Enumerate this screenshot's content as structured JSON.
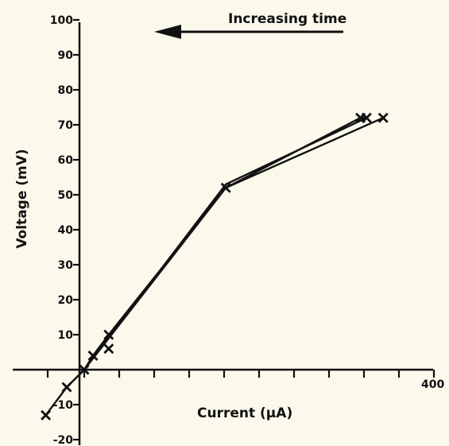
{
  "chart_data": {
    "type": "line",
    "title": "",
    "xlabel": "Current (µA)",
    "ylabel": "Voltage (mV)",
    "xlim": [
      -40,
      400
    ],
    "ylim": [
      -20,
      100
    ],
    "y_ticks": [
      "100",
      "90",
      "80",
      "70",
      "60",
      "50",
      "40",
      "30",
      "20",
      "10",
      "-10",
      "-20"
    ],
    "x_tick_values": [
      0,
      40,
      80,
      120,
      160,
      200,
      240,
      280,
      320,
      360,
      400
    ],
    "x_tick_labels_shown": [
      "400"
    ],
    "annotation": "Increasing time",
    "marker": "x",
    "series": [
      {
        "points": [
          [
            -44,
            -13
          ],
          [
            -20,
            -5
          ],
          [
            0,
            0
          ],
          [
            10,
            4
          ],
          [
            28,
            10
          ],
          [
            28,
            6
          ],
          [
            162,
            52
          ],
          [
            316,
            72
          ],
          [
            323,
            72
          ],
          [
            342,
            72
          ]
        ],
        "path": [
          [
            -44,
            -13
          ],
          [
            -20,
            -5
          ],
          [
            0,
            0
          ],
          [
            10,
            4
          ],
          [
            28,
            10
          ],
          [
            162,
            52
          ],
          [
            316,
            72
          ],
          [
            323,
            72
          ],
          [
            162,
            53
          ],
          [
            0,
            0
          ],
          [
            162,
            52
          ],
          [
            342,
            72
          ]
        ]
      }
    ],
    "grid": false,
    "legend": "none"
  }
}
